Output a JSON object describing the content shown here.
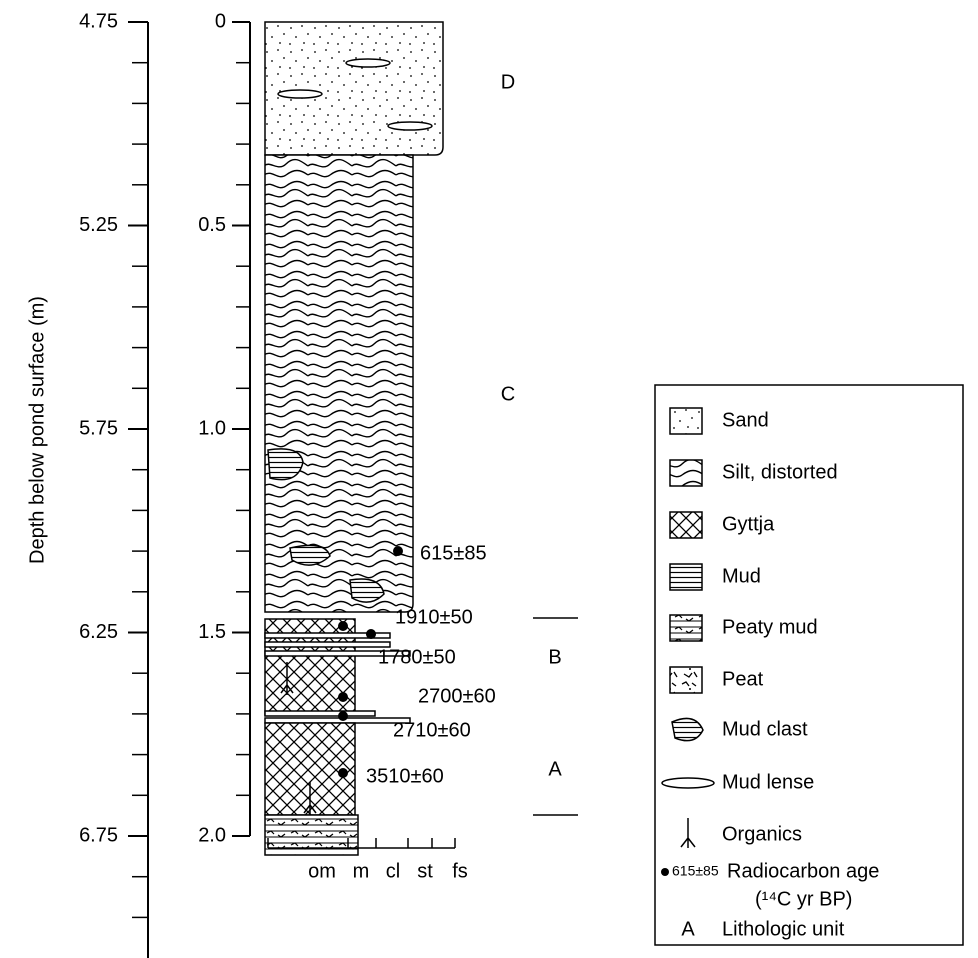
{
  "depth_axis": {
    "title": "Depth below pond surface (m)",
    "ticks": [
      "4.75",
      "5.25",
      "5.75",
      "6.25",
      "6.75"
    ]
  },
  "core_axis": {
    "ticks": [
      "0",
      "0.5",
      "1.0",
      "1.5",
      "2.0"
    ]
  },
  "grain_size": [
    "om",
    "m",
    "cl",
    "st",
    "fs"
  ],
  "units": [
    "D",
    "C",
    "B",
    "A"
  ],
  "dates": [
    "615±85",
    "1910±50",
    "1780±50",
    "2700±60",
    "2710±60",
    "3510±60"
  ],
  "legend": {
    "items": [
      "Sand",
      "Silt, distorted",
      "Gyttja",
      "Mud",
      "Peaty mud",
      "Peat",
      "Mud clast",
      "Mud lense",
      "Organics"
    ],
    "radiocarbon_sample": "615±85",
    "radiocarbon_label": "Radiocarbon age",
    "radiocarbon_unit": "(¹⁴C yr BP)",
    "unit_sample": "A",
    "unit_label": "Lithologic unit"
  }
}
